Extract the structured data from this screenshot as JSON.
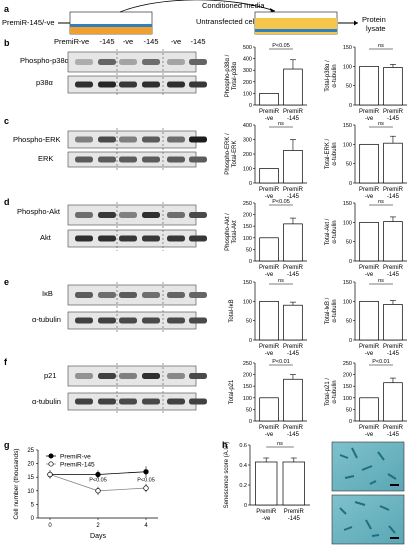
{
  "panel_letters": [
    "a",
    "b",
    "c",
    "d",
    "e",
    "f",
    "g",
    "h"
  ],
  "schematic": {
    "left_label": "PremiR-145/-ve",
    "arrow_label": "Conditioned media",
    "cells_label": "Untransfected cells",
    "right_label_1": "Protein",
    "right_label_2": "lysate",
    "colors": {
      "dish_top": "#2f7fc1",
      "dish_fill": "#f0a030",
      "media": "#f5c64a"
    }
  },
  "blot_header": {
    "premir": "PremiR",
    "lanes": [
      "-ve",
      "-145",
      "-ve",
      "-145",
      "-ve",
      "-145"
    ]
  },
  "blots": {
    "b": {
      "rows": [
        "Phospho-p38α",
        "p38α"
      ]
    },
    "c": {
      "rows": [
        "Phospho-ERK",
        "ERK"
      ]
    },
    "d": {
      "rows": [
        "Phospho-Akt",
        "Akt"
      ]
    },
    "e": {
      "rows": [
        "IκB",
        "α-tubulin"
      ]
    },
    "f": {
      "rows": [
        "p21",
        "α-tubulin"
      ]
    }
  },
  "bar_xlabels": [
    "PremiR\n-ve",
    "PremiR\n-145"
  ],
  "chart_data": [
    {
      "id": "b1",
      "type": "bar",
      "categories": [
        "PremiR -ve",
        "PremiR -145"
      ],
      "values": [
        100,
        310
      ],
      "errors": [
        0,
        80
      ],
      "ylabel": "Phospho-p38α / Total-p38α",
      "yticks": [
        0,
        100,
        200,
        300,
        400,
        500
      ],
      "ylim": [
        0,
        500
      ],
      "annotation": "P<0.05"
    },
    {
      "id": "b2",
      "type": "bar",
      "categories": [
        "PremiR -ve",
        "PremiR -145"
      ],
      "values": [
        100,
        97
      ],
      "errors": [
        0,
        8
      ],
      "ylabel": "Total-p38α / α-tubulin",
      "yticks": [
        0,
        50,
        100,
        150
      ],
      "ylim": [
        0,
        150
      ],
      "annotation": "ns"
    },
    {
      "id": "c1",
      "type": "bar",
      "categories": [
        "PremiR -ve",
        "PremiR -145"
      ],
      "values": [
        100,
        225
      ],
      "errors": [
        0,
        75
      ],
      "ylabel": "Phospho-ERK / Total-ERK",
      "yticks": [
        0,
        100,
        200,
        300,
        400
      ],
      "ylim": [
        0,
        400
      ],
      "annotation": "ns"
    },
    {
      "id": "c2",
      "type": "bar",
      "categories": [
        "PremiR -ve",
        "PremiR -145"
      ],
      "values": [
        100,
        103
      ],
      "errors": [
        0,
        18
      ],
      "ylabel": "Total-ERK / α-tubulin",
      "yticks": [
        0,
        50,
        100,
        150
      ],
      "ylim": [
        0,
        150
      ],
      "annotation": "ns"
    },
    {
      "id": "d1",
      "type": "bar",
      "categories": [
        "PremiR -ve",
        "PremiR -145"
      ],
      "values": [
        100,
        160
      ],
      "errors": [
        0,
        25
      ],
      "ylabel": "Phospho-Akt / Total-Akt",
      "yticks": [
        0,
        50,
        100,
        150,
        200,
        250
      ],
      "ylim": [
        0,
        250
      ],
      "annotation": "P<0.05"
    },
    {
      "id": "d2",
      "type": "bar",
      "categories": [
        "PremiR -ve",
        "PremiR -145"
      ],
      "values": [
        100,
        102
      ],
      "errors": [
        0,
        12
      ],
      "ylabel": "Total-Akt / α-tubulin",
      "yticks": [
        0,
        50,
        100,
        150
      ],
      "ylim": [
        0,
        150
      ],
      "annotation": "ns"
    },
    {
      "id": "e1",
      "type": "bar",
      "categories": [
        "PremiR -ve",
        "PremiR -145"
      ],
      "values": [
        100,
        90
      ],
      "errors": [
        0,
        8
      ],
      "ylabel": "Total-IκB",
      "yticks": [
        0,
        50,
        100,
        150
      ],
      "ylim": [
        0,
        150
      ],
      "annotation": "ns"
    },
    {
      "id": "e2",
      "type": "bar",
      "categories": [
        "PremiR -ve",
        "PremiR -145"
      ],
      "values": [
        100,
        92
      ],
      "errors": [
        0,
        10
      ],
      "ylabel": "Total-IκB / α-tubulin",
      "yticks": [
        0,
        50,
        100,
        150
      ],
      "ylim": [
        0,
        150
      ],
      "annotation": "ns"
    },
    {
      "id": "f1",
      "type": "bar",
      "categories": [
        "PremiR -ve",
        "PremiR -145"
      ],
      "values": [
        100,
        180
      ],
      "errors": [
        0,
        20
      ],
      "ylabel": "Total-p21",
      "yticks": [
        0,
        50,
        100,
        150,
        200,
        250
      ],
      "ylim": [
        0,
        250
      ],
      "annotation": "P<0.01"
    },
    {
      "id": "f2",
      "type": "bar",
      "categories": [
        "PremiR -ve",
        "PremiR -145"
      ],
      "values": [
        100,
        165
      ],
      "errors": [
        0,
        20
      ],
      "ylabel": "Total-p21 / α-tubulin",
      "yticks": [
        0,
        50,
        100,
        150,
        200,
        250
      ],
      "ylim": [
        0,
        250
      ],
      "annotation": "P<0.01"
    },
    {
      "id": "g",
      "type": "line",
      "x": [
        0,
        2,
        4
      ],
      "xticks": [
        0,
        2,
        4
      ],
      "xlim": [
        -0.5,
        4.5
      ],
      "yticks": [
        0,
        5,
        10,
        15,
        20,
        25
      ],
      "ylim": [
        0,
        25
      ],
      "xlabel": "Days",
      "ylabel": "Cell number (thousands)",
      "series": [
        {
          "name": "PremiR-ve",
          "values": [
            16,
            16,
            17
          ],
          "errors": [
            1.5,
            1.5,
            2
          ],
          "marker": "filled"
        },
        {
          "name": "PremiR-145",
          "values": [
            16,
            10,
            11
          ],
          "errors": [
            1.5,
            1.5,
            1.5
          ],
          "marker": "open"
        }
      ],
      "annotations": [
        {
          "x": 2,
          "text": "P<0.05"
        },
        {
          "x": 4,
          "text": "P<0.05"
        }
      ],
      "legend": "top-left"
    },
    {
      "id": "h",
      "type": "bar",
      "categories": [
        "PremiR -ve",
        "PremiR -145"
      ],
      "values": [
        0.43,
        0.43
      ],
      "errors": [
        0.04,
        0.04
      ],
      "ylabel": "Senescence score (A.U.)",
      "yticks": [
        0,
        0.2,
        0.4,
        0.6
      ],
      "ylim": [
        0,
        0.6
      ],
      "annotation": "ns"
    }
  ]
}
